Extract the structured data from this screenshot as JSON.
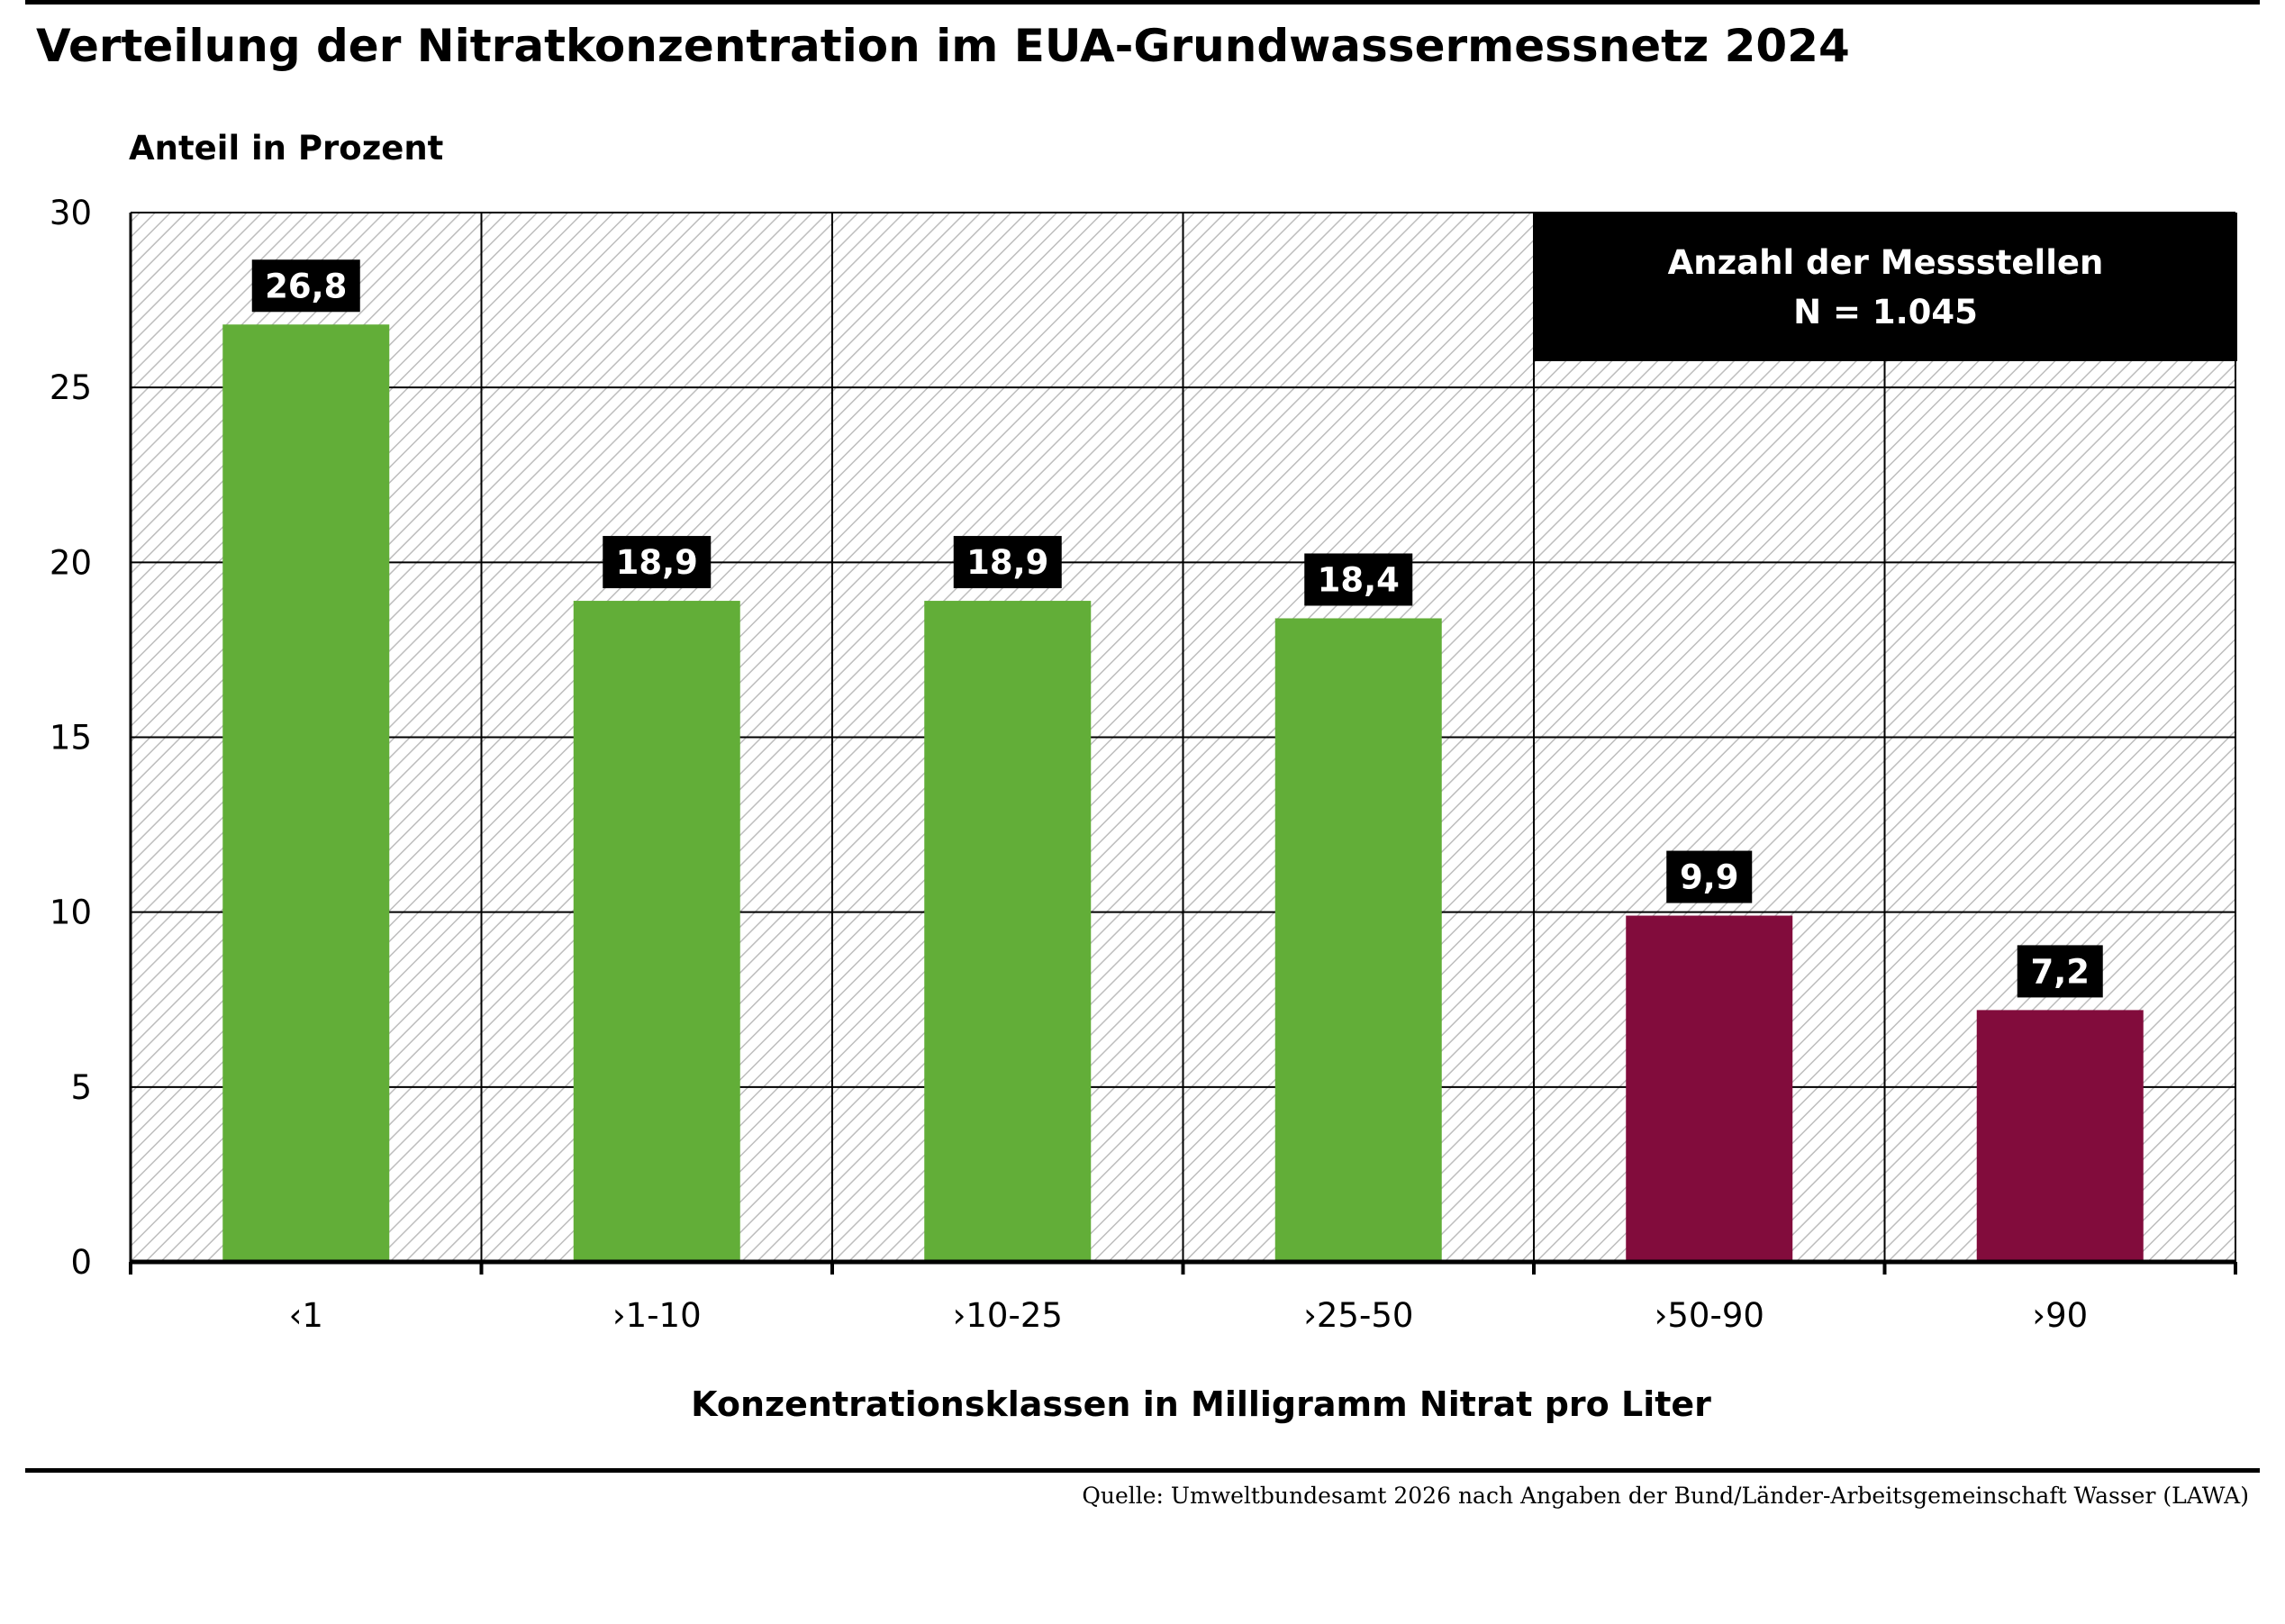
{
  "title": "Verteilung der Nitratkonzentration im EUA-Grundwassermessnetz 2024",
  "source": "Quelle: Umweltbundesamt 2026 nach Angaben der Bund/Länder-Arbeitsgemeinschaft Wasser (LAWA)",
  "chart_data": {
    "type": "bar",
    "ylabel": "Anteil in Prozent",
    "xlabel": "Konzentrationsklassen in Milligramm Nitrat pro Liter",
    "categories": [
      "‹1",
      "›1-10",
      "›10-25",
      "›25-50",
      "›50-90",
      "›90"
    ],
    "values": [
      26.8,
      18.9,
      18.9,
      18.4,
      9.9,
      7.2
    ],
    "value_labels": [
      "26,8",
      "18,9",
      "18,9",
      "18,4",
      "9,9",
      "7,2"
    ],
    "ylim": [
      0,
      30
    ],
    "yticks": [
      0,
      5,
      10,
      15,
      20,
      25,
      30
    ],
    "grid": true,
    "bar_colors": [
      "#62ae38",
      "#62ae38",
      "#62ae38",
      "#62ae38",
      "#820c3c",
      "#820c3c"
    ],
    "annotation": {
      "line1": "Anzahl der Messstellen",
      "line2": "N = 1.045",
      "placement": "top-right"
    }
  }
}
